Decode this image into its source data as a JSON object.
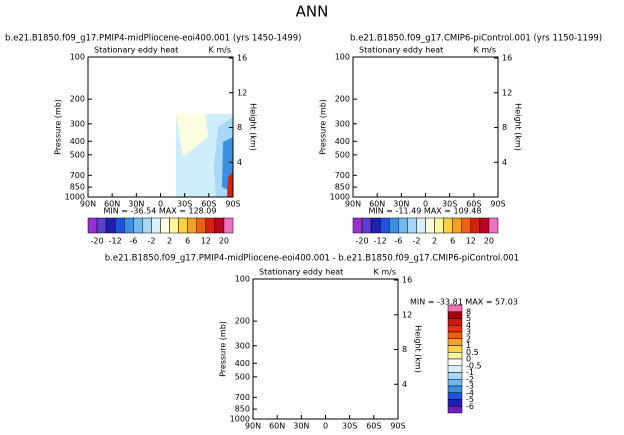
{
  "title": "ANN",
  "chart_data": [
    {
      "type": "contour",
      "title": "b.e21.B1850.f09_g17.PMIP4-midPliocene-eoi400.001 (yrs 1450-1499)",
      "subtitle": "Stationary eddy heat",
      "units": "K m/s",
      "ylabel": "Pressure (mb)",
      "y2label": "Height (km)",
      "log_y": true,
      "ylim": [
        1000,
        100
      ],
      "yticks": [
        100,
        200,
        300,
        400,
        500,
        700,
        850,
        1000
      ],
      "xlim": [
        90,
        -90
      ],
      "xticks": [
        {
          "value": 90,
          "label": "90N"
        },
        {
          "value": 60,
          "label": "60N"
        },
        {
          "value": 30,
          "label": "30N"
        },
        {
          "value": 0,
          "label": "0"
        },
        {
          "value": -30,
          "label": "30S"
        },
        {
          "value": -60,
          "label": "60S"
        },
        {
          "value": -90,
          "label": "90S"
        }
      ],
      "y2ticks": [
        4,
        8,
        12,
        16
      ],
      "stats_label": "MIN = -36.54   MAX = 128.09",
      "colorbar": {
        "orientation": "horizontal",
        "colors": [
          "#9b30d0",
          "#5a3fd0",
          "#1e20b0",
          "#2050e0",
          "#3a8fe0",
          "#70b8f0",
          "#a8d8f8",
          "#d8f0fc",
          "#fffde0",
          "#fff5a0",
          "#ffd040",
          "#f8a020",
          "#f06010",
          "#d82010",
          "#c00020",
          "#f070c0"
        ],
        "labels": [
          -20,
          -12,
          -6,
          -2,
          2,
          6,
          12,
          20
        ]
      }
    },
    {
      "type": "contour",
      "title": "b.e21.B1850.f09_g17.CMIP6-piControl.001 (yrs 1150-1199)",
      "subtitle": "Stationary eddy heat",
      "units": "K m/s",
      "ylabel": "Pressure (mb)",
      "y2label": "Height (km)",
      "log_y": true,
      "ylim": [
        1000,
        100
      ],
      "yticks": [
        100,
        200,
        300,
        400,
        500,
        700,
        850,
        1000
      ],
      "xlim": [
        90,
        -90
      ],
      "xticks": [
        {
          "value": 90,
          "label": "90N"
        },
        {
          "value": 60,
          "label": "60N"
        },
        {
          "value": 30,
          "label": "30N"
        },
        {
          "value": 0,
          "label": "0"
        },
        {
          "value": -30,
          "label": "30S"
        },
        {
          "value": -60,
          "label": "60S"
        },
        {
          "value": -90,
          "label": "90S"
        }
      ],
      "y2ticks": [
        4,
        8,
        12,
        16
      ],
      "stats_label": "MIN = -11.49   MAX = 109.48",
      "colorbar": {
        "orientation": "horizontal",
        "colors": [
          "#9b30d0",
          "#5a3fd0",
          "#1e20b0",
          "#2050e0",
          "#3a8fe0",
          "#70b8f0",
          "#a8d8f8",
          "#d8f0fc",
          "#fffde0",
          "#fff5a0",
          "#ffd040",
          "#f8a020",
          "#f06010",
          "#d82010",
          "#c00020",
          "#f070c0"
        ],
        "labels": [
          -20,
          -12,
          -6,
          -2,
          2,
          6,
          12,
          20
        ]
      }
    },
    {
      "type": "contour",
      "title": "b.e21.B1850.f09_g17.PMIP4-midPliocene-eoi400.001 - b.e21.B1850.f09_g17.CMIP6-piControl.001",
      "subtitle": "Stationary eddy heat",
      "units": "K m/s",
      "ylabel": "Pressure (mb)",
      "y2label": "Height (km)",
      "log_y": true,
      "ylim": [
        1000,
        100
      ],
      "yticks": [
        100,
        200,
        300,
        400,
        500,
        700,
        850,
        1000
      ],
      "xlim": [
        90,
        -90
      ],
      "xticks": [
        {
          "value": 90,
          "label": "90N"
        },
        {
          "value": 60,
          "label": "60N"
        },
        {
          "value": 30,
          "label": "30N"
        },
        {
          "value": 0,
          "label": "0"
        },
        {
          "value": -30,
          "label": "30S"
        },
        {
          "value": -60,
          "label": "60S"
        },
        {
          "value": -90,
          "label": "90S"
        }
      ],
      "y2ticks": [
        4,
        8,
        12,
        16
      ],
      "stats_label": "MIN = -33.81   MAX = 57.03",
      "colorbar": {
        "orientation": "vertical",
        "colors": [
          "#f070b0",
          "#a00010",
          "#c81818",
          "#e83010",
          "#f06010",
          "#f8a030",
          "#ffd050",
          "#fff5a0",
          "#ffffff",
          "#d8f0fc",
          "#a8d8f8",
          "#70b8f0",
          "#3a8fe0",
          "#2050e0",
          "#1e20b0",
          "#7020c0"
        ],
        "labels": [
          8,
          5,
          4,
          3,
          2,
          1,
          0.5,
          0,
          -0.5,
          -1,
          -2,
          -3,
          -4,
          -5,
          -6
        ]
      }
    }
  ]
}
